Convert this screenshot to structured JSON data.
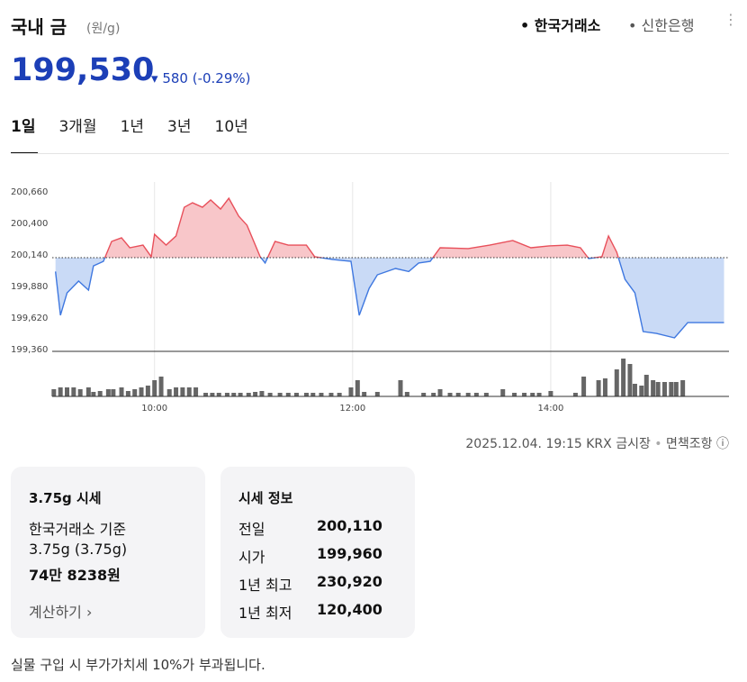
{
  "header": {
    "title": "국내 금",
    "unit": "(원/g)",
    "sources": [
      "한국거래소",
      "신한은행"
    ]
  },
  "price": {
    "current": "199,530",
    "change": "580",
    "change_pct": "(-0.29%)"
  },
  "tabs": [
    "1일",
    "3개월",
    "1년",
    "3년",
    "10년"
  ],
  "chart_data": {
    "type": "line",
    "x": [
      540,
      543,
      547,
      554,
      560,
      563,
      569,
      574,
      580,
      585,
      593,
      598,
      600,
      607,
      613,
      618,
      623,
      629,
      634,
      640,
      645,
      651,
      656,
      664,
      667,
      673,
      681,
      692,
      697,
      708,
      719,
      724,
      730,
      735,
      746,
      754,
      760,
      767,
      773,
      790,
      803,
      817,
      828,
      839,
      850,
      858,
      863,
      871,
      875,
      880,
      885,
      891,
      896,
      904,
      915,
      923,
      945
    ],
    "values": [
      199996,
      199635,
      199820,
      199917,
      199843,
      200043,
      200080,
      200244,
      200274,
      200192,
      200214,
      200118,
      200303,
      200214,
      200289,
      200526,
      200563,
      200526,
      200586,
      200511,
      200600,
      200452,
      200378,
      200118,
      200066,
      200244,
      200214,
      200214,
      200118,
      200095,
      200080,
      199635,
      199857,
      199969,
      200021,
      199996,
      200066,
      200080,
      200192,
      200185,
      200214,
      200252,
      200192,
      200207,
      200214,
      200192,
      200103,
      200118,
      200289,
      200155,
      199932,
      199820,
      199501,
      199486,
      199449,
      199575,
      199575
    ],
    "prev_close": 200110,
    "up_color": "#e8505b",
    "down_color": "#3f78e0",
    "up_fill": "#f8c6c9",
    "down_fill": "#c9daf6",
    "xlim": [
      538,
      948
    ],
    "xticks": [
      {
        "value": 600,
        "label": "10:00"
      },
      {
        "value": 720,
        "label": "12:00"
      },
      {
        "value": 840,
        "label": "14:00"
      }
    ],
    "ylim": [
      199360,
      200660
    ],
    "yticks": [
      {
        "value": 199360,
        "label": "199,360"
      },
      {
        "value": 199620,
        "label": "199,620"
      },
      {
        "value": 199880,
        "label": "199,880"
      },
      {
        "value": 200140,
        "label": "200,140"
      },
      {
        "value": 200400,
        "label": "200,400"
      },
      {
        "value": 200660,
        "label": "200,660"
      }
    ],
    "grid": true,
    "volume": {
      "color": "#666666",
      "x": [
        539,
        543,
        547,
        551,
        555,
        560,
        563,
        567,
        572,
        575,
        580,
        584,
        588,
        592,
        596,
        600,
        604,
        609,
        613,
        617,
        621,
        625,
        631,
        635,
        639,
        644,
        648,
        652,
        657,
        661,
        665,
        670,
        676,
        681,
        686,
        692,
        696,
        701,
        707,
        712,
        719,
        723,
        727,
        735,
        749,
        753,
        763,
        769,
        773,
        779,
        784,
        790,
        795,
        801,
        811,
        818,
        824,
        829,
        833,
        840,
        855,
        860,
        869,
        873,
        880,
        884,
        888,
        891,
        895,
        898,
        902,
        905,
        909,
        913,
        916,
        920
      ],
      "values": [
        8,
        10,
        10,
        10,
        8,
        10,
        5,
        6,
        8,
        8,
        10,
        6,
        8,
        10,
        12,
        18,
        22,
        8,
        10,
        10,
        10,
        10,
        4,
        4,
        4,
        4,
        4,
        4,
        4,
        5,
        6,
        4,
        4,
        4,
        4,
        4,
        4,
        4,
        4,
        4,
        10,
        18,
        5,
        5,
        18,
        5,
        4,
        4,
        8,
        4,
        4,
        4,
        4,
        4,
        8,
        4,
        4,
        4,
        4,
        6,
        4,
        22,
        18,
        20,
        30,
        42,
        36,
        14,
        12,
        24,
        18,
        16,
        16,
        16,
        16,
        18
      ]
    }
  },
  "footnote": {
    "timestamp": "2025.12.04. 19:15 KRX 금시장",
    "disclaimer": "면책조항"
  },
  "card_a": {
    "title": "3.75g 시세",
    "basis": "한국거래소 기준",
    "weight": "3.75g (3.75g)",
    "amount": "74만 8238원",
    "link": "계산하기"
  },
  "card_b": {
    "title": "시세 정보",
    "rows": [
      [
        "전일",
        "200,110"
      ],
      [
        "시가",
        "199,960"
      ],
      [
        "1년 최고",
        "230,920"
      ],
      [
        "1년 최저",
        "120,400"
      ]
    ]
  },
  "notice": "실물 구입 시 부가가치세 10%가 부과됩니다."
}
